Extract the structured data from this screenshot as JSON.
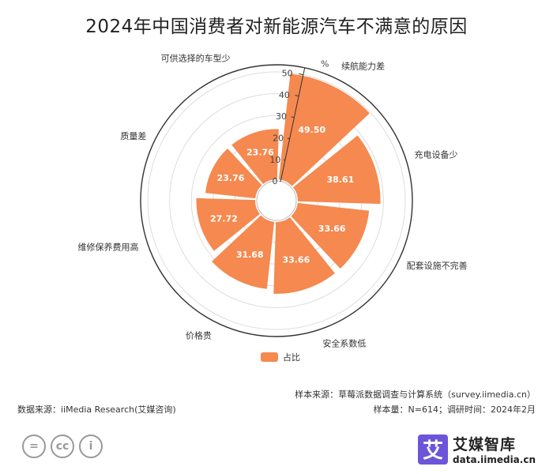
{
  "chart_data": {
    "type": "polar-bar",
    "title": "2024年中国消费者对新能源汽车不满意的原因",
    "unit": "%",
    "categories": [
      "续航能力差",
      "充电设备少",
      "配套设施不完善",
      "安全系数低",
      "价格贵",
      "维修保养费用高",
      "质量差",
      "可供选择的车型少"
    ],
    "values": [
      49.5,
      38.61,
      33.66,
      33.66,
      31.68,
      27.72,
      23.76,
      23.76
    ],
    "value_labels": [
      "49.50",
      "38.61",
      "33.66",
      "33.66",
      "31.68",
      "27.72",
      "23.76",
      "23.76"
    ],
    "radial_ticks": [
      "0",
      "10",
      "20",
      "30",
      "40",
      "50"
    ],
    "radial_range": [
      0,
      50
    ],
    "series": [
      {
        "name": "占比",
        "color": "#f5894f"
      }
    ]
  },
  "footer": {
    "source_left": "数据来源：iiMedia Research(艾媒咨询)",
    "sample_source": "样本来源：草莓派数据调查与计算系统（survey.iimedia.cn）",
    "sample_info": "样本量：N=614；调研时间：2024年2月"
  },
  "logo": {
    "glyph": "艾",
    "name": "艾媒智库",
    "url": "data.iimedia.cn"
  },
  "cc_icons": [
    {
      "name": "equals-icon",
      "glyph": "="
    },
    {
      "name": "cc-icon",
      "glyph": "cc"
    },
    {
      "name": "person-icon",
      "glyph": "i"
    }
  ]
}
